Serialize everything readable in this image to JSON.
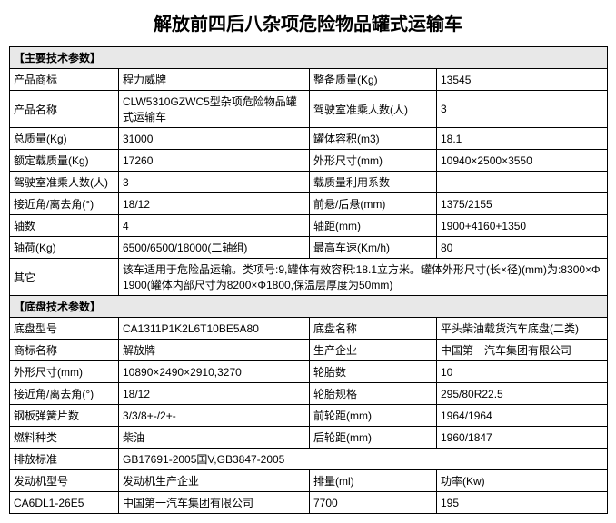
{
  "title": "解放前四后八杂项危险物品罐式运输车",
  "sections": {
    "s1": "【主要技术参数】",
    "s2": "【底盘技术参数】"
  },
  "labels": {
    "productBrand": "产品商标",
    "curbWeight": "整备质量(Kg)",
    "productName": "产品名称",
    "cabSeats": "驾驶室准乘人数(人)",
    "totalMass": "总质量(Kg)",
    "tankVolume": "罐体容积(m3)",
    "ratedLoad": "额定载质量(Kg)",
    "outerDim": "外形尺寸(mm)",
    "cabSeats2": "驾驶室准乘人数(人)",
    "loadFactor": "载质量利用系数",
    "approachAngle": "接近角/离去角(°)",
    "overhang": "前悬/后悬(mm)",
    "axleCount": "轴数",
    "wheelbase": "轴距(mm)",
    "axleLoad": "轴荷(Kg)",
    "maxSpeed": "最高车速(Km/h)",
    "other": "其它",
    "chassisModel": "底盘型号",
    "chassisName": "底盘名称",
    "brandName": "商标名称",
    "manufacturer": "生产企业",
    "outerDim2": "外形尺寸(mm)",
    "tireCount": "轮胎数",
    "approachAngle2": "接近角/离去角(°)",
    "tireSpec": "轮胎规格",
    "leafSpring": "钢板弹簧片数",
    "frontTrack": "前轮距(mm)",
    "fuelType": "燃料种类",
    "rearTrack": "后轮距(mm)",
    "emissionStd": "排放标准",
    "engineModel": "发动机型号",
    "engineMfr": "发动机生产企业",
    "displacement": "排量(ml)",
    "power": "功率(Kw)"
  },
  "values": {
    "productBrand": "程力威牌",
    "curbWeight": "13545",
    "productName": "CLW5310GZWC5型杂项危险物品罐式运输车",
    "cabSeats": "3",
    "totalMass": "31000",
    "tankVolume": "18.1",
    "ratedLoad": "17260",
    "outerDim": "10940×2500×3550",
    "cabSeats2": "3",
    "loadFactor": "",
    "approachAngle": "18/12",
    "overhang": "1375/2155",
    "axleCount": "4",
    "wheelbase": "1900+4160+1350",
    "axleLoad": "6500/6500/18000(二轴组)",
    "maxSpeed": "80",
    "other": "该车适用于危险品运输。类项号:9,罐体有效容积:18.1立方米。罐体外形尺寸(长×径)(mm)为:8300×Φ1900(罐体内部尺寸为8200×Φ1800,保温层厚度为50mm)",
    "chassisModel": "CA1311P1K2L6T10BE5A80",
    "chassisName": "平头柴油载货汽车底盘(二类)",
    "brandName": "解放牌",
    "manufacturer": "中国第一汽车集团有限公司",
    "outerDim2": "10890×2490×2910,3270",
    "tireCount": "10",
    "approachAngle2": "18/12",
    "tireSpec": "295/80R22.5",
    "leafSpring": "3/3/8+-/2+-",
    "frontTrack": "1964/1964",
    "fuelType": "柴油",
    "rearTrack": "1960/1847",
    "emissionStd": "GB17691-2005国V,GB3847-2005",
    "engineModel": "CA6DL1-26E5",
    "engineMfr": "中国第一汽车集团有限公司",
    "displacement": "7700",
    "power": "195"
  }
}
